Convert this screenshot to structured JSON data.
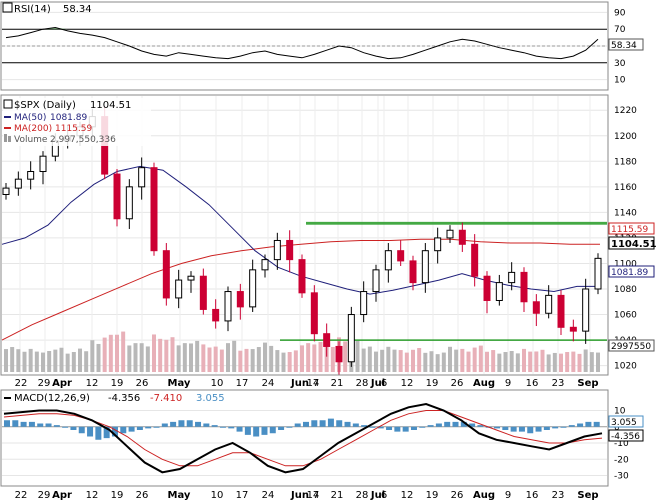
{
  "rsi": {
    "label": "RSI(14)",
    "value": "58.34",
    "ticks": [
      90,
      70,
      50,
      30,
      10
    ],
    "current_value": "58.34",
    "levels": [
      70,
      30
    ]
  },
  "main": {
    "symbol_label": "$SPX (Daily)",
    "last": "1104.51",
    "ma50_label": "MA(50)",
    "ma50_value": "1081.89",
    "ma200_label": "MA(200)",
    "ma200_value": "1115.59",
    "volume_label": "Volume",
    "volume_value": "2,997,550,336",
    "yticks": [
      1220,
      1200,
      1180,
      1160,
      1140,
      1120,
      1100,
      1080,
      1060,
      1040,
      1020
    ],
    "ma200_badge": "1115.59",
    "last_badge": "1104.51",
    "ma50_badge": "1081.89",
    "volume_badge": "2997550",
    "support_level": 1040,
    "resistance_level": 1131
  },
  "x_labels": [
    "22",
    "29",
    "Apr",
    "12",
    "19",
    "26",
    "May",
    "10",
    "17",
    "24",
    "Jun",
    "7",
    "14",
    "21",
    "28",
    "Jul",
    "6",
    "12",
    "19",
    "26",
    "Aug",
    "9",
    "16",
    "23",
    "Sep"
  ],
  "macd": {
    "label_name": "MACD(12,26,9)",
    "value1": "-4.356",
    "value2": "-7.410",
    "value3": "3.055",
    "yticks": [
      "10",
      "0",
      "-10",
      "-20",
      "-30"
    ],
    "badge_hist": "3.055",
    "badge_macd": "-4.356"
  },
  "colors": {
    "candle_up": "#000000",
    "candle_down": "#cc0033",
    "ma50": "#1f1f7a",
    "ma200": "#cc2222",
    "support": "#2a9d2a",
    "volume_up": "#b8b8b8",
    "volume_down": "#e8b0b8",
    "histogram": "#4a8fc4"
  },
  "chart_data": {
    "type": "candlestick",
    "title": "$SPX (Daily)",
    "series": [
      {
        "name": "Close",
        "values": [
          1159,
          1166,
          1172,
          1184,
          1196,
          1200,
          1207,
          1215,
          1170,
          1135,
          1160,
          1175,
          1110,
          1073,
          1087,
          1090,
          1064,
          1055,
          1078,
          1066,
          1095,
          1103,
          1118,
          1103,
          1077,
          1045,
          1035,
          1023,
          1060,
          1078,
          1095,
          1110,
          1102,
          1085,
          1110,
          1120,
          1126,
          1115,
          1090,
          1071,
          1085,
          1093,
          1070,
          1061,
          1075,
          1050,
          1047,
          1080,
          1104
        ]
      },
      {
        "name": "MA(50)",
        "values": [
          1115,
          1120,
          1130,
          1148,
          1162,
          1172,
          1176,
          1173,
          1160,
          1146,
          1128,
          1110,
          1097,
          1090,
          1085,
          1080,
          1076,
          1079,
          1083,
          1087,
          1092,
          1087,
          1083,
          1080,
          1078,
          1082,
          1082
        ]
      },
      {
        "name": "MA(200)",
        "values": [
          1040,
          1052,
          1062,
          1072,
          1082,
          1092,
          1100,
          1106,
          1110,
          1113,
          1115,
          1117,
          1118,
          1118,
          1119,
          1119,
          1117,
          1116,
          1116,
          1115,
          1115
        ]
      }
    ],
    "ylim": [
      1015,
      1228
    ],
    "x_labels": [
      "22",
      "29",
      "Apr",
      "12",
      "19",
      "26",
      "May",
      "10",
      "17",
      "24",
      "Jun",
      "7",
      "14",
      "21",
      "28",
      "Jul",
      "6",
      "12",
      "19",
      "26",
      "Aug",
      "9",
      "16",
      "23",
      "Sep"
    ]
  }
}
